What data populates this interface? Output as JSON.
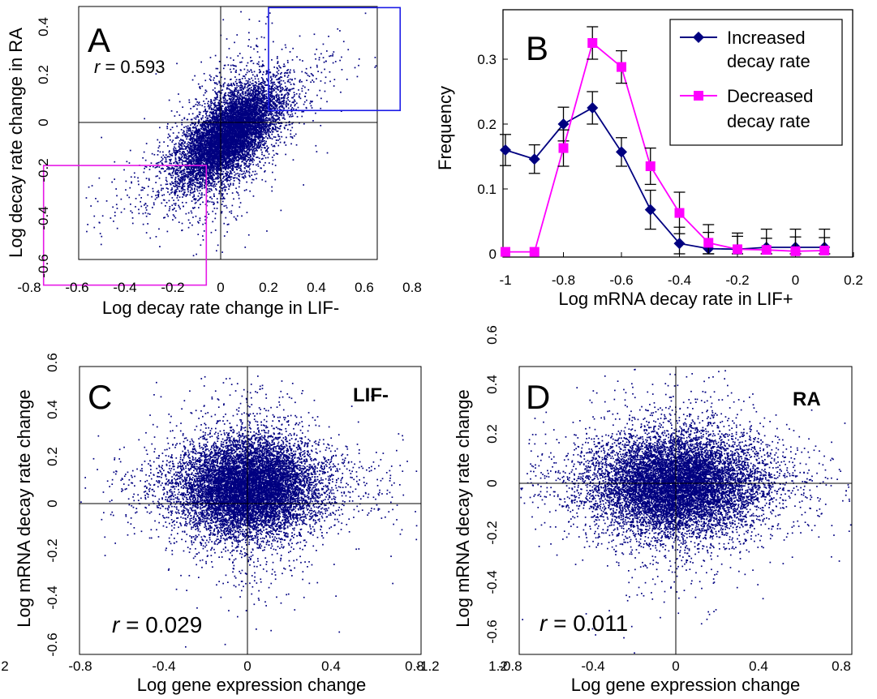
{
  "chart_data": [
    {
      "type": "scatter",
      "panel_label": "A",
      "xlabel": "Log decay rate change in LIF-",
      "ylabel": "Log decay rate change in RA",
      "xlim": [
        -0.8,
        0.8
      ],
      "ylim": [
        -0.72,
        0.5
      ],
      "xticks": [
        "-0.8",
        "-0.6",
        "-0.4",
        "-0.2",
        "0",
        "0.2",
        "0.4",
        "0.6",
        "0.8"
      ],
      "yticks": [
        "-0.6",
        "-0.4",
        "-0.2",
        "0",
        "0.2",
        "0.4"
      ],
      "annotation": {
        "r_symbol": "r",
        "r_text": " = 0.593"
      },
      "correlation": 0.593,
      "points_estimated": 9000,
      "highlight_boxes": [
        {
          "color": "#1a1ae6",
          "x_range": [
            0.2,
            0.75
          ],
          "y_range": [
            0.05,
            0.48
          ]
        },
        {
          "color": "#e619e6",
          "x_range": [
            -0.74,
            -0.06
          ],
          "y_range": [
            -0.68,
            -0.18
          ]
        }
      ],
      "point_color": "#000080"
    },
    {
      "type": "line",
      "panel_label": "B",
      "xlabel": "Log mRNA decay rate in LIF+",
      "ylabel": "Frequency",
      "xlim": [
        -1,
        0.2
      ],
      "ylim": [
        0,
        0.37
      ],
      "xticks": [
        "-1",
        "-0.8",
        "-0.6",
        "-0.4",
        "-0.2",
        "0",
        "0.2"
      ],
      "yticks": [
        "0",
        "0.1",
        "0.2",
        "0.3"
      ],
      "x": [
        -1,
        -0.9,
        -0.8,
        -0.7,
        -0.6,
        -0.5,
        -0.4,
        -0.3,
        -0.2,
        -0.1,
        0,
        0.1
      ],
      "series": [
        {
          "name_lines": [
            "Increased",
            "decay rate"
          ],
          "color": "#000080",
          "marker": "diamond",
          "values": [
            0.16,
            0.146,
            0.2,
            0.225,
            0.157,
            0.068,
            0.016,
            0.008,
            0.007,
            0.01,
            0.01,
            0.01
          ],
          "err": [
            0.024,
            0.022,
            0.026,
            0.025,
            0.022,
            0.03,
            0.025,
            0.025,
            0.025,
            0.028,
            0.028,
            0.028
          ]
        },
        {
          "name_lines": [
            "Decreased",
            "decay rate"
          ],
          "color": "#ff00ff",
          "marker": "square",
          "values": [
            0.003,
            0.003,
            0.163,
            0.325,
            0.288,
            0.135,
            0.063,
            0.017,
            0.007,
            0.006,
            0.004,
            0.005
          ],
          "err": [
            0,
            0,
            0.028,
            0.025,
            0.025,
            0.028,
            0.032,
            0.028,
            0.02,
            0.018,
            0.022,
            0.02
          ]
        }
      ],
      "legend": "top-right"
    },
    {
      "type": "scatter",
      "panel_label": "C",
      "corner_label": "LIF-",
      "xlabel": "Log gene expression change",
      "ylabel": "Log mRNA decay rate change",
      "xlim": [
        -1.2,
        1.2
      ],
      "ylim": [
        -0.6,
        0.6
      ],
      "xticks": [
        "-1.2",
        "-0.8",
        "-0.4",
        "0",
        "0.4",
        "0.8",
        "1.2"
      ],
      "yticks": [
        "-0.6",
        "-0.4",
        "-0.2",
        "0",
        "0.2",
        "0.4",
        "0.6"
      ],
      "annotation": {
        "r_symbol": "r",
        "r_text": " = 0.029"
      },
      "correlation": 0.029,
      "points_estimated": 11000,
      "point_color": "#000080"
    },
    {
      "type": "scatter",
      "panel_label": "D",
      "corner_label": "RA",
      "xlabel": "Log gene expression change",
      "ylabel": "Log mRNA decay rate change",
      "xlim": [
        -1.2,
        1.2
      ],
      "ylim": [
        -0.6,
        0.6
      ],
      "xticks": [
        "-1.2",
        "-0.8",
        "-0.4",
        "0",
        "0.4",
        "0.8",
        "1.2"
      ],
      "yticks": [
        "-0.6",
        "-0.4",
        "-0.2",
        "0",
        "0.2",
        "0.4",
        "0.6"
      ],
      "annotation": {
        "r_symbol": "r",
        "r_text": " = 0.011"
      },
      "correlation": 0.011,
      "points_estimated": 11000,
      "point_color": "#000080"
    }
  ]
}
